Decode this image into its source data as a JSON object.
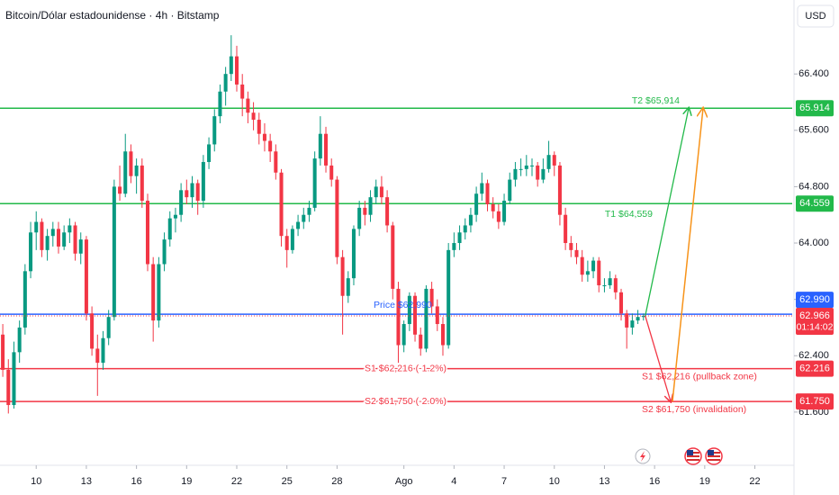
{
  "chart_data": {
    "type": "candlestick",
    "title": "Bitcoin/Dólar estadounidense · 4h · Bitstamp",
    "currency": "USD",
    "up_color": "#089981",
    "down_color": "#f23645",
    "grid": false,
    "xlim": [
      -0.5,
      141.7
    ],
    "ylim": [
      60870,
      67450
    ],
    "xticks": [
      {
        "value": 6,
        "label": "10"
      },
      {
        "value": 15,
        "label": "13"
      },
      {
        "value": 24,
        "label": "16"
      },
      {
        "value": 33,
        "label": "19"
      },
      {
        "value": 42,
        "label": "22"
      },
      {
        "value": 51,
        "label": "25"
      },
      {
        "value": 60,
        "label": "28"
      },
      {
        "value": 72,
        "label": "Ago"
      },
      {
        "value": 81,
        "label": "4"
      },
      {
        "value": 90,
        "label": "7"
      },
      {
        "value": 99,
        "label": "10"
      },
      {
        "value": 108,
        "label": "13"
      },
      {
        "value": 117,
        "label": "16"
      },
      {
        "value": 126,
        "label": "19"
      },
      {
        "value": 135,
        "label": "22"
      }
    ],
    "yticks": [
      {
        "value": 61600,
        "label": "61.600"
      },
      {
        "value": 62400,
        "label": "62.400"
      },
      {
        "value": 63200,
        "label": "63.200"
      },
      {
        "value": 64000,
        "label": "64.000"
      },
      {
        "value": 64800,
        "label": "64.800"
      },
      {
        "value": 65600,
        "label": "65.600"
      },
      {
        "value": 66400,
        "label": "66.400"
      }
    ],
    "ohlc": [
      [
        62700,
        62850,
        62100,
        62200
      ],
      [
        62200,
        62350,
        61580,
        61700
      ],
      [
        61700,
        62600,
        61650,
        62450
      ],
      [
        62450,
        62900,
        62300,
        62800
      ],
      [
        62800,
        63700,
        62700,
        63600
      ],
      [
        63600,
        64300,
        63500,
        64150
      ],
      [
        64150,
        64450,
        63900,
        64300
      ],
      [
        64300,
        64350,
        63800,
        63900
      ],
      [
        63900,
        64200,
        63750,
        64100
      ],
      [
        64100,
        64300,
        63950,
        64200
      ],
      [
        64200,
        64300,
        63850,
        63950
      ],
      [
        63950,
        64250,
        63900,
        64150
      ],
      [
        64150,
        64350,
        64000,
        64250
      ],
      [
        64250,
        64300,
        63750,
        63850
      ],
      [
        63850,
        64150,
        63700,
        64050
      ],
      [
        64050,
        64100,
        62900,
        63000
      ],
      [
        63000,
        63100,
        62400,
        62500
      ],
      [
        62500,
        62700,
        61830,
        62300
      ],
      [
        62300,
        62750,
        62200,
        62650
      ],
      [
        62650,
        63050,
        62550,
        62950
      ],
      [
        62950,
        64900,
        62900,
        64800
      ],
      [
        64800,
        65100,
        64600,
        64700
      ],
      [
        64700,
        65550,
        64650,
        65300
      ],
      [
        65300,
        65400,
        64850,
        64950
      ],
      [
        64950,
        65200,
        64700,
        65100
      ],
      [
        65100,
        65200,
        64500,
        64600
      ],
      [
        64600,
        64700,
        63600,
        63700
      ],
      [
        63700,
        63800,
        62600,
        62900
      ],
      [
        62900,
        63800,
        62800,
        63700
      ],
      [
        63700,
        64150,
        63600,
        64050
      ],
      [
        64050,
        64450,
        63950,
        64350
      ],
      [
        64350,
        64500,
        64150,
        64400
      ],
      [
        64400,
        64850,
        64300,
        64750
      ],
      [
        64750,
        64900,
        64550,
        64650
      ],
      [
        64650,
        64950,
        64500,
        64850
      ],
      [
        64850,
        64900,
        64400,
        64600
      ],
      [
        64600,
        65250,
        64500,
        65150
      ],
      [
        65150,
        65500,
        65050,
        65400
      ],
      [
        65400,
        65900,
        65300,
        65800
      ],
      [
        65800,
        66250,
        65700,
        66150
      ],
      [
        66150,
        66500,
        65950,
        66400
      ],
      [
        66400,
        66950,
        66300,
        66650
      ],
      [
        66650,
        66800,
        66150,
        66250
      ],
      [
        66250,
        66400,
        65800,
        66050
      ],
      [
        66050,
        66150,
        65700,
        65850
      ],
      [
        65850,
        66000,
        65600,
        65750
      ],
      [
        65750,
        65850,
        65400,
        65550
      ],
      [
        65550,
        65700,
        65300,
        65450
      ],
      [
        65450,
        65550,
        65150,
        65300
      ],
      [
        65300,
        65400,
        64900,
        65000
      ],
      [
        65000,
        65050,
        63950,
        64100
      ],
      [
        64100,
        64200,
        63650,
        63900
      ],
      [
        63900,
        64250,
        63850,
        64200
      ],
      [
        64200,
        64400,
        64100,
        64300
      ],
      [
        64300,
        64500,
        64200,
        64400
      ],
      [
        64400,
        64600,
        64300,
        64500
      ],
      [
        64500,
        65300,
        64450,
        65200
      ],
      [
        65200,
        65800,
        65100,
        65550
      ],
      [
        65550,
        65650,
        65000,
        65100
      ],
      [
        65100,
        65200,
        64800,
        64900
      ],
      [
        64900,
        64950,
        63700,
        63800
      ],
      [
        63800,
        63900,
        62700,
        63250
      ],
      [
        63250,
        63600,
        63150,
        63500
      ],
      [
        63500,
        64250,
        63400,
        64200
      ],
      [
        64200,
        64600,
        64100,
        64500
      ],
      [
        64500,
        64600,
        64250,
        64400
      ],
      [
        64400,
        64750,
        64300,
        64650
      ],
      [
        64650,
        64900,
        64550,
        64800
      ],
      [
        64800,
        64950,
        64550,
        64650
      ],
      [
        64650,
        64750,
        64150,
        64250
      ],
      [
        64250,
        64300,
        63200,
        63350
      ],
      [
        63350,
        63450,
        62300,
        62550
      ],
      [
        62550,
        62900,
        62450,
        62850
      ],
      [
        62850,
        63300,
        62750,
        63250
      ],
      [
        63250,
        63300,
        62600,
        62700
      ],
      [
        62700,
        62800,
        62400,
        62500
      ],
      [
        62500,
        63400,
        62450,
        63350
      ],
      [
        63350,
        63450,
        63000,
        63100
      ],
      [
        63100,
        63200,
        62750,
        62850
      ],
      [
        62850,
        62950,
        62400,
        62550
      ],
      [
        62550,
        64000,
        62500,
        63900
      ],
      [
        63900,
        64150,
        63800,
        64000
      ],
      [
        64000,
        64250,
        63900,
        64150
      ],
      [
        64150,
        64350,
        64050,
        64250
      ],
      [
        64250,
        64500,
        64150,
        64400
      ],
      [
        64400,
        64800,
        64300,
        64700
      ],
      [
        64700,
        65000,
        64600,
        64850
      ],
      [
        64850,
        64900,
        64450,
        64550
      ],
      [
        64550,
        64650,
        64350,
        64450
      ],
      [
        64450,
        64550,
        64200,
        64300
      ],
      [
        64300,
        64700,
        64250,
        64600
      ],
      [
        64600,
        65000,
        64550,
        64900
      ],
      [
        64900,
        65150,
        64800,
        65050
      ],
      [
        65050,
        65200,
        64950,
        65050
      ],
      [
        65050,
        65250,
        64950,
        65100
      ],
      [
        65100,
        65200,
        64950,
        65100
      ],
      [
        65100,
        65150,
        64800,
        64900
      ],
      [
        64900,
        65200,
        64850,
        65050
      ],
      [
        65050,
        65450,
        65000,
        65250
      ],
      [
        65250,
        65300,
        64950,
        65100
      ],
      [
        65100,
        65150,
        64250,
        64400
      ],
      [
        64400,
        64500,
        63900,
        64000
      ],
      [
        64000,
        64100,
        63800,
        63900
      ],
      [
        63900,
        64000,
        63700,
        63800
      ],
      [
        63800,
        63900,
        63450,
        63550
      ],
      [
        63550,
        63750,
        63450,
        63600
      ],
      [
        63600,
        63800,
        63500,
        63750
      ],
      [
        63750,
        63800,
        63300,
        63400
      ],
      [
        63400,
        63500,
        63300,
        63400
      ],
      [
        63400,
        63600,
        63350,
        63500
      ],
      [
        63500,
        63550,
        63200,
        63300
      ],
      [
        63300,
        63350,
        62900,
        63000
      ],
      [
        63000,
        63050,
        62500,
        62800
      ],
      [
        62800,
        63000,
        62700,
        62900
      ],
      [
        62900,
        63050,
        62850,
        62950
      ],
      [
        62950,
        63000,
        62900,
        62966
      ]
    ],
    "last": {
      "value": 62966,
      "label": "62.966",
      "countdown": "01:14:02",
      "color": "#f23645"
    },
    "levels": [
      {
        "value": 65914,
        "axis_label": "65.914",
        "color": "#22b94a",
        "labels": [
          "T2 $65,914"
        ]
      },
      {
        "value": 64559,
        "axis_label": "64.559",
        "color": "#22b94a",
        "labels": [
          "T1 $64,559"
        ]
      },
      {
        "value": 62990,
        "axis_label": "62.990",
        "color": "#2962ff",
        "labels": [
          "Price $62,990"
        ]
      },
      {
        "value": 62216,
        "axis_label": "62.216",
        "color": "#f23645",
        "labels": [
          "S1 $62,216 (-1.2%)",
          "S1 $62,216 (pullback zone)"
        ]
      },
      {
        "value": 61750,
        "axis_label": "61.750",
        "color": "#f23645",
        "labels": [
          "S2 $61,750 (-2.0%)",
          "S2 $61,750 (invalidation)"
        ]
      }
    ]
  }
}
